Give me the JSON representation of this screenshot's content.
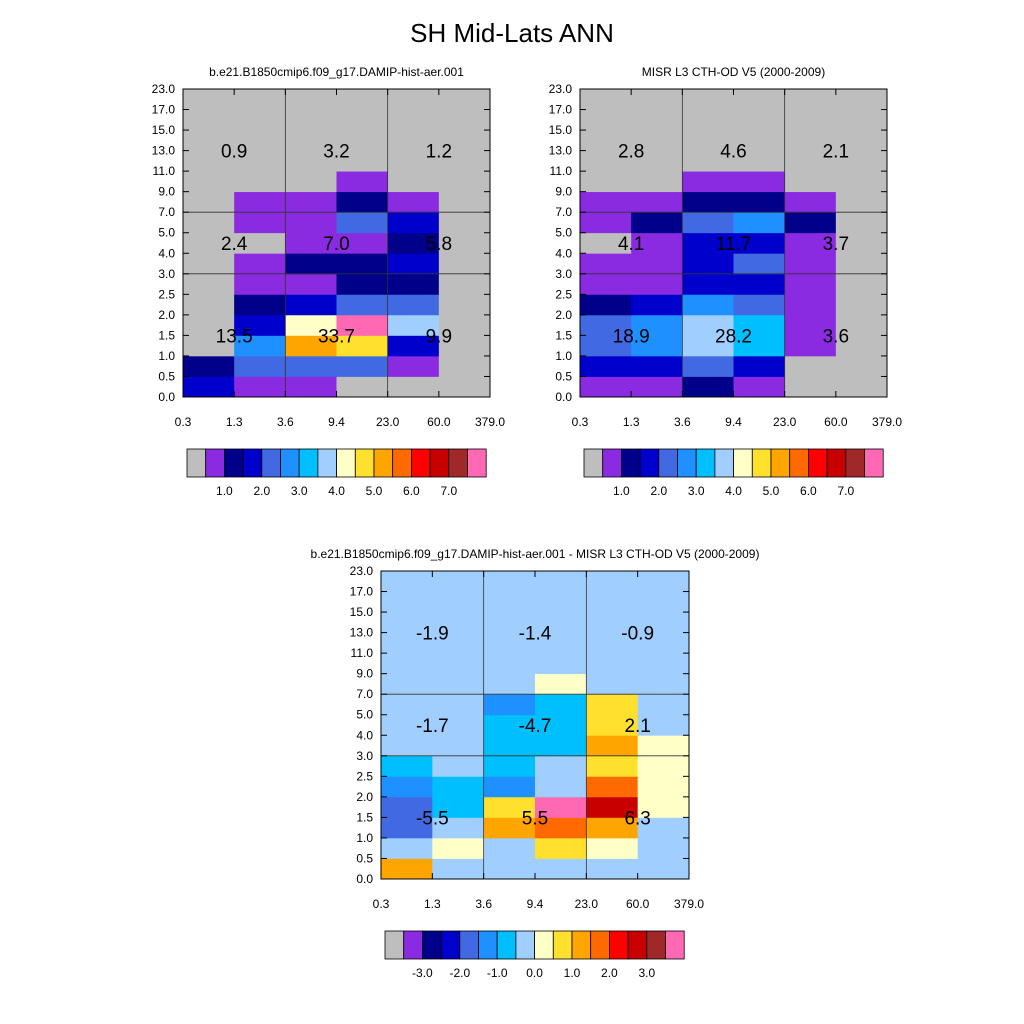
{
  "figure": {
    "title": "SH Mid-Lats ANN"
  },
  "chart_data": [
    {
      "type": "heatmap",
      "title": "b.e21.B1850cmip6.f09_g17.DAMIP-hist-aer.001",
      "x_tick_labels": [
        "0.3",
        "1.3",
        "3.6",
        "9.4",
        "23.0",
        "60.0",
        "379.0"
      ],
      "y_tick_labels": [
        "0.0",
        "0.5",
        "1.0",
        "1.5",
        "2.0",
        "2.5",
        "3.0",
        "4.0",
        "5.0",
        "7.0",
        "9.0",
        "11.0",
        "13.0",
        "15.0",
        "17.0",
        "23.0"
      ],
      "cell_colors": [
        [
          "#0000CD",
          "#8A2BE2",
          "#8A2BE2",
          "#BEBEBE",
          "#BEBEBE",
          "#BEBEBE"
        ],
        [
          "#00008B",
          "#4169E1",
          "#4169E1",
          "#4169E1",
          "#8A2BE2",
          "#BEBEBE"
        ],
        [
          "#BEBEBE",
          "#1E90FF",
          "#FFA500",
          "#FFE12D",
          "#0000CD",
          "#BEBEBE"
        ],
        [
          "#BEBEBE",
          "#0000CD",
          "#FFFFC8",
          "#FF69B4",
          "#A0CFFF",
          "#BEBEBE"
        ],
        [
          "#BEBEBE",
          "#00008B",
          "#0000CD",
          "#4169E1",
          "#4169E1",
          "#BEBEBE"
        ],
        [
          "#BEBEBE",
          "#8A2BE2",
          "#8A2BE2",
          "#00008B",
          "#00008B",
          "#BEBEBE"
        ],
        [
          "#BEBEBE",
          "#8A2BE2",
          "#00008B",
          "#00008B",
          "#0000CD",
          "#BEBEBE"
        ],
        [
          "#BEBEBE",
          "#BEBEBE",
          "#8A2BE2",
          "#8A2BE2",
          "#00008B",
          "#BEBEBE"
        ],
        [
          "#BEBEBE",
          "#8A2BE2",
          "#8A2BE2",
          "#4169E1",
          "#0000CD",
          "#BEBEBE"
        ],
        [
          "#BEBEBE",
          "#8A2BE2",
          "#8A2BE2",
          "#00008B",
          "#8A2BE2",
          "#BEBEBE"
        ],
        [
          "#BEBEBE",
          "#BEBEBE",
          "#BEBEBE",
          "#8A2BE2",
          "#BEBEBE",
          "#BEBEBE"
        ],
        [
          "#BEBEBE",
          "#BEBEBE",
          "#BEBEBE",
          "#BEBEBE",
          "#BEBEBE",
          "#BEBEBE"
        ],
        [
          "#BEBEBE",
          "#BEBEBE",
          "#BEBEBE",
          "#BEBEBE",
          "#BEBEBE",
          "#BEBEBE"
        ],
        [
          "#BEBEBE",
          "#BEBEBE",
          "#BEBEBE",
          "#BEBEBE",
          "#BEBEBE",
          "#BEBEBE"
        ],
        [
          "#BEBEBE",
          "#BEBEBE",
          "#BEBEBE",
          "#BEBEBE",
          "#BEBEBE",
          "#BEBEBE"
        ]
      ],
      "block_values": [
        [
          "13.5",
          "33.7",
          "9.9"
        ],
        [
          "2.4",
          "7.0",
          "5.8"
        ],
        [
          "0.9",
          "3.2",
          "1.2"
        ]
      ],
      "colorbar": {
        "colors": [
          "#BEBEBE",
          "#8A2BE2",
          "#00008B",
          "#0000CD",
          "#4169E1",
          "#1E90FF",
          "#00BFFF",
          "#A0CFFF",
          "#FFFFC8",
          "#FFE12D",
          "#FFA500",
          "#FF6A00",
          "#FF0000",
          "#C80000",
          "#A02828",
          "#FF69B4"
        ],
        "labels": [
          "1.0",
          "2.0",
          "3.0",
          "4.0",
          "5.0",
          "6.0",
          "7.0"
        ]
      }
    },
    {
      "type": "heatmap",
      "title": "MISR L3 CTH-OD V5 (2000-2009)",
      "x_tick_labels": [
        "0.3",
        "1.3",
        "3.6",
        "9.4",
        "23.0",
        "60.0",
        "379.0"
      ],
      "y_tick_labels": [
        "0.0",
        "0.5",
        "1.0",
        "1.5",
        "2.0",
        "2.5",
        "3.0",
        "4.0",
        "5.0",
        "7.0",
        "9.0",
        "11.0",
        "13.0",
        "15.0",
        "17.0",
        "23.0"
      ],
      "cell_colors": [
        [
          "#8A2BE2",
          "#8A2BE2",
          "#00008B",
          "#8A2BE2",
          "#BEBEBE",
          "#BEBEBE"
        ],
        [
          "#0000CD",
          "#0000CD",
          "#4169E1",
          "#0000CD",
          "#BEBEBE",
          "#BEBEBE"
        ],
        [
          "#4169E1",
          "#1E90FF",
          "#A0CFFF",
          "#00BFFF",
          "#8A2BE2",
          "#BEBEBE"
        ],
        [
          "#4169E1",
          "#1E90FF",
          "#A0CFFF",
          "#00BFFF",
          "#8A2BE2",
          "#BEBEBE"
        ],
        [
          "#00008B",
          "#0000CD",
          "#1E90FF",
          "#4169E1",
          "#8A2BE2",
          "#BEBEBE"
        ],
        [
          "#8A2BE2",
          "#8A2BE2",
          "#0000CD",
          "#0000CD",
          "#8A2BE2",
          "#BEBEBE"
        ],
        [
          "#8A2BE2",
          "#8A2BE2",
          "#0000CD",
          "#4169E1",
          "#8A2BE2",
          "#BEBEBE"
        ],
        [
          "#BEBEBE",
          "#8A2BE2",
          "#0000CD",
          "#0000CD",
          "#8A2BE2",
          "#BEBEBE"
        ],
        [
          "#8A2BE2",
          "#00008B",
          "#4169E1",
          "#1E90FF",
          "#00008B",
          "#BEBEBE"
        ],
        [
          "#8A2BE2",
          "#8A2BE2",
          "#00008B",
          "#00008B",
          "#8A2BE2",
          "#BEBEBE"
        ],
        [
          "#BEBEBE",
          "#BEBEBE",
          "#8A2BE2",
          "#8A2BE2",
          "#BEBEBE",
          "#BEBEBE"
        ],
        [
          "#BEBEBE",
          "#BEBEBE",
          "#BEBEBE",
          "#BEBEBE",
          "#BEBEBE",
          "#BEBEBE"
        ],
        [
          "#BEBEBE",
          "#BEBEBE",
          "#BEBEBE",
          "#BEBEBE",
          "#BEBEBE",
          "#BEBEBE"
        ],
        [
          "#BEBEBE",
          "#BEBEBE",
          "#BEBEBE",
          "#BEBEBE",
          "#BEBEBE",
          "#BEBEBE"
        ],
        [
          "#BEBEBE",
          "#BEBEBE",
          "#BEBEBE",
          "#BEBEBE",
          "#BEBEBE",
          "#BEBEBE"
        ]
      ],
      "block_values": [
        [
          "18.9",
          "28.2",
          "3.6"
        ],
        [
          "4.1",
          "11.7",
          "3.7"
        ],
        [
          "2.8",
          "4.6",
          "2.1"
        ]
      ],
      "colorbar": {
        "colors": [
          "#BEBEBE",
          "#8A2BE2",
          "#00008B",
          "#0000CD",
          "#4169E1",
          "#1E90FF",
          "#00BFFF",
          "#A0CFFF",
          "#FFFFC8",
          "#FFE12D",
          "#FFA500",
          "#FF6A00",
          "#FF0000",
          "#C80000",
          "#A02828",
          "#FF69B4"
        ],
        "labels": [
          "1.0",
          "2.0",
          "3.0",
          "4.0",
          "5.0",
          "6.0",
          "7.0"
        ]
      }
    },
    {
      "type": "heatmap",
      "title": "b.e21.B1850cmip6.f09_g17.DAMIP-hist-aer.001 - MISR L3 CTH-OD V5 (2000-2009)",
      "x_tick_labels": [
        "0.3",
        "1.3",
        "3.6",
        "9.4",
        "23.0",
        "60.0",
        "379.0"
      ],
      "y_tick_labels": [
        "0.0",
        "0.5",
        "1.0",
        "1.5",
        "2.0",
        "2.5",
        "3.0",
        "4.0",
        "5.0",
        "7.0",
        "9.0",
        "11.0",
        "13.0",
        "15.0",
        "17.0",
        "23.0"
      ],
      "cell_colors": [
        [
          "#FFA500",
          "#A0CFFF",
          "#A0CFFF",
          "#A0CFFF",
          "#A0CFFF",
          "#A0CFFF"
        ],
        [
          "#A0CFFF",
          "#FFFFC8",
          "#A0CFFF",
          "#FFE12D",
          "#FFFFC8",
          "#A0CFFF"
        ],
        [
          "#4169E1",
          "#A0CFFF",
          "#FFA500",
          "#FF6A00",
          "#FFA500",
          "#A0CFFF"
        ],
        [
          "#4169E1",
          "#00BFFF",
          "#FFE12D",
          "#FF69B4",
          "#C80000",
          "#FFFFC8"
        ],
        [
          "#1E90FF",
          "#00BFFF",
          "#1E90FF",
          "#A0CFFF",
          "#FF6A00",
          "#FFFFC8"
        ],
        [
          "#00BFFF",
          "#A0CFFF",
          "#00BFFF",
          "#A0CFFF",
          "#FFE12D",
          "#FFFFC8"
        ],
        [
          "#A0CFFF",
          "#A0CFFF",
          "#00BFFF",
          "#00BFFF",
          "#FFA500",
          "#FFFFC8"
        ],
        [
          "#A0CFFF",
          "#A0CFFF",
          "#00BFFF",
          "#00BFFF",
          "#FFE12D",
          "#A0CFFF"
        ],
        [
          "#A0CFFF",
          "#A0CFFF",
          "#1E90FF",
          "#00BFFF",
          "#FFE12D",
          "#A0CFFF"
        ],
        [
          "#A0CFFF",
          "#A0CFFF",
          "#A0CFFF",
          "#FFFFC8",
          "#A0CFFF",
          "#A0CFFF"
        ],
        [
          "#A0CFFF",
          "#A0CFFF",
          "#A0CFFF",
          "#A0CFFF",
          "#A0CFFF",
          "#A0CFFF"
        ],
        [
          "#A0CFFF",
          "#A0CFFF",
          "#A0CFFF",
          "#A0CFFF",
          "#A0CFFF",
          "#A0CFFF"
        ],
        [
          "#A0CFFF",
          "#A0CFFF",
          "#A0CFFF",
          "#A0CFFF",
          "#A0CFFF",
          "#A0CFFF"
        ],
        [
          "#A0CFFF",
          "#A0CFFF",
          "#A0CFFF",
          "#A0CFFF",
          "#A0CFFF",
          "#A0CFFF"
        ],
        [
          "#A0CFFF",
          "#A0CFFF",
          "#A0CFFF",
          "#A0CFFF",
          "#A0CFFF",
          "#A0CFFF"
        ]
      ],
      "block_values": [
        [
          "-5.5",
          "5.5",
          "6.3"
        ],
        [
          "-1.7",
          "-4.7",
          "2.1"
        ],
        [
          "-1.9",
          "-1.4",
          "-0.9"
        ]
      ],
      "colorbar": {
        "colors": [
          "#BEBEBE",
          "#8A2BE2",
          "#00008B",
          "#0000CD",
          "#4169E1",
          "#1E90FF",
          "#00BFFF",
          "#A0CFFF",
          "#FFFFC8",
          "#FFE12D",
          "#FFA500",
          "#FF6A00",
          "#FF0000",
          "#C80000",
          "#A02828",
          "#FF69B4"
        ],
        "labels": [
          "-3.0",
          "-2.0",
          "-1.0",
          "0.0",
          "1.0",
          "2.0",
          "3.0"
        ]
      }
    }
  ]
}
